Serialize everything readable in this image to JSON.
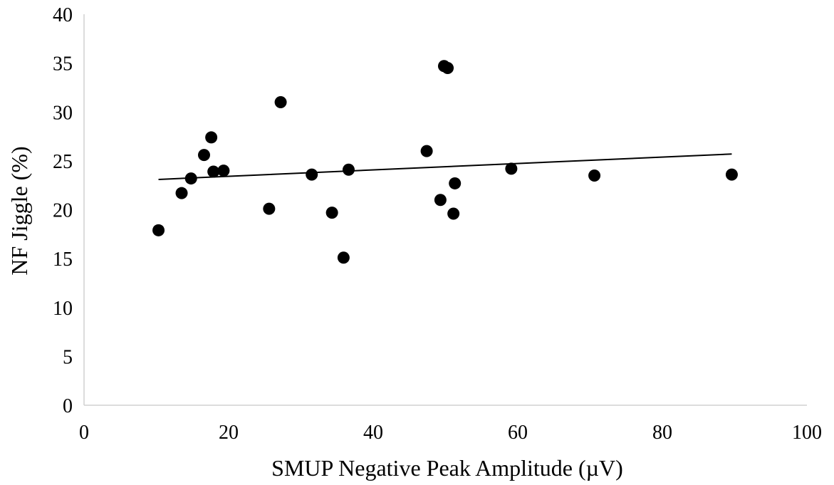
{
  "chart_data": {
    "type": "scatter",
    "title": "",
    "xlabel": "SMUP Negative Peak Amplitude (µV)",
    "ylabel": "NF Jiggle (%)",
    "xlim": [
      0,
      100
    ],
    "ylim": [
      0,
      40
    ],
    "xticks": [
      0,
      20,
      40,
      60,
      80,
      100
    ],
    "yticks": [
      0,
      5,
      10,
      15,
      20,
      25,
      30,
      35,
      40
    ],
    "grid": false,
    "legend": "none",
    "series": [
      {
        "points": [
          {
            "x": 10.3,
            "y": 17.9
          },
          {
            "x": 13.5,
            "y": 21.7
          },
          {
            "x": 14.8,
            "y": 23.2
          },
          {
            "x": 16.6,
            "y": 25.6
          },
          {
            "x": 17.6,
            "y": 27.4
          },
          {
            "x": 17.9,
            "y": 23.9
          },
          {
            "x": 19.3,
            "y": 24.0
          },
          {
            "x": 25.6,
            "y": 20.1
          },
          {
            "x": 27.2,
            "y": 31.0
          },
          {
            "x": 31.5,
            "y": 23.6
          },
          {
            "x": 34.3,
            "y": 19.7
          },
          {
            "x": 35.9,
            "y": 15.1
          },
          {
            "x": 36.6,
            "y": 24.1
          },
          {
            "x": 47.4,
            "y": 26.0
          },
          {
            "x": 49.3,
            "y": 21.0
          },
          {
            "x": 49.8,
            "y": 34.7
          },
          {
            "x": 50.3,
            "y": 34.5
          },
          {
            "x": 51.1,
            "y": 19.6
          },
          {
            "x": 51.3,
            "y": 22.7
          },
          {
            "x": 59.1,
            "y": 24.2
          },
          {
            "x": 70.6,
            "y": 23.5
          },
          {
            "x": 89.6,
            "y": 23.6
          }
        ],
        "trendline": {
          "x": [
            10.3,
            89.6
          ],
          "y": [
            23.1,
            25.7
          ]
        },
        "color": "#000000"
      }
    ]
  }
}
